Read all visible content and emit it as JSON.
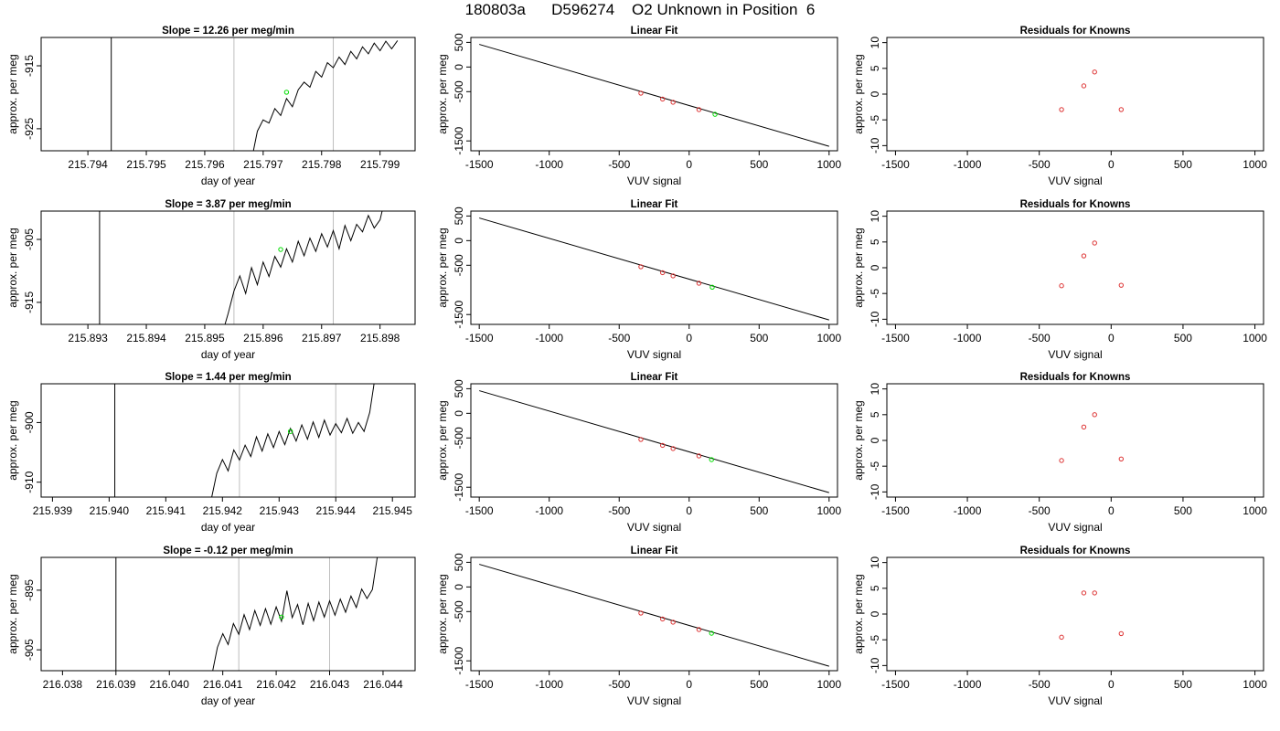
{
  "figure": {
    "title": "180803a      D596274    O2 Unknown in Position  6"
  },
  "chart_data": [
    {
      "type": "line",
      "panel": "raw-row-1",
      "title": "Slope =  12.26  per meg/min",
      "xlabel": "day of year",
      "ylabel": "approx. per meg",
      "xlim": [
        215.7932,
        215.7996
      ],
      "ylim": [
        -928.5,
        -910.5
      ],
      "xticks": [
        "215.794",
        "215.795",
        "215.796",
        "215.797",
        "215.798",
        "215.799"
      ],
      "yticks": [
        "-915",
        "-925"
      ],
      "vline_dark": 215.7944,
      "vlines_gray": [
        215.7965,
        215.7982
      ],
      "mean_point": {
        "x": 215.7974,
        "y": -919.2
      },
      "series": [
        {
          "points": [
            [
              215.7968,
              -930
            ],
            [
              215.7969,
              -925.4
            ],
            [
              215.797,
              -923.6
            ],
            [
              215.7971,
              -924.1
            ],
            [
              215.7972,
              -921.8
            ],
            [
              215.7973,
              -922.9
            ],
            [
              215.7974,
              -920.2
            ],
            [
              215.7975,
              -921.5
            ],
            [
              215.7976,
              -918.8
            ],
            [
              215.7977,
              -917.6
            ],
            [
              215.7978,
              -918.4
            ],
            [
              215.7979,
              -915.9
            ],
            [
              215.798,
              -916.8
            ],
            [
              215.7981,
              -914.5
            ],
            [
              215.7982,
              -915.3
            ],
            [
              215.7983,
              -913.6
            ],
            [
              215.7984,
              -914.8
            ],
            [
              215.7985,
              -912.7
            ],
            [
              215.7986,
              -913.9
            ],
            [
              215.7987,
              -912.0
            ],
            [
              215.7988,
              -913.1
            ],
            [
              215.7989,
              -911.4
            ],
            [
              215.799,
              -912.6
            ],
            [
              215.7991,
              -911.1
            ],
            [
              215.7992,
              -912.3
            ],
            [
              215.7993,
              -911.0
            ]
          ]
        }
      ]
    },
    {
      "type": "scatter",
      "panel": "fit-row-1",
      "title": "Linear Fit",
      "xlabel": "VUV signal",
      "ylabel": "approx. per meg",
      "xlim": [
        -1560,
        1060
      ],
      "ylim": [
        -1700,
        600
      ],
      "xticks": [
        "-1500",
        "-1000",
        "-500",
        "0",
        "500",
        "1000"
      ],
      "yticks": [
        "500",
        "0",
        "-500",
        "-1500"
      ],
      "fit_line": {
        "x": [
          -1500,
          1000
        ],
        "y": [
          460,
          -1610
        ]
      },
      "known_points": {
        "x": [
          -345,
          -190,
          -115,
          70
        ],
        "y": [
          -530,
          -650,
          -715,
          -865
        ]
      },
      "unknown_point": {
        "x": 185,
        "y": -960
      }
    },
    {
      "type": "scatter",
      "panel": "resid-row-1",
      "title": "Residuals for Knowns",
      "xlabel": "VUV signal",
      "ylabel": "approx. per meg",
      "xlim": [
        -1560,
        1060
      ],
      "ylim": [
        -11,
        11
      ],
      "xticks": [
        "-1500",
        "-1000",
        "-500",
        "0",
        "500",
        "1000"
      ],
      "yticks": [
        "10",
        "5",
        "0",
        "-5",
        "-10"
      ],
      "points": {
        "x": [
          -345,
          -190,
          -115,
          70
        ],
        "y": [
          -3.0,
          1.6,
          4.3,
          -3.0
        ]
      }
    },
    {
      "type": "line",
      "panel": "raw-row-2",
      "title": "Slope =  3.87  per meg/min",
      "xlabel": "day of year",
      "ylabel": "approx. per meg",
      "xlim": [
        215.8922,
        215.8986
      ],
      "ylim": [
        -918.5,
        -900.5
      ],
      "xticks": [
        "215.893",
        "215.894",
        "215.895",
        "215.896",
        "215.897",
        "215.898"
      ],
      "yticks": [
        "-905",
        "-915"
      ],
      "vline_dark": 215.8932,
      "vlines_gray": [
        215.8955,
        215.8972
      ],
      "mean_point": {
        "x": 215.8963,
        "y": -906.6
      },
      "series": [
        {
          "points": [
            [
              215.8953,
              -920
            ],
            [
              215.8954,
              -916.8
            ],
            [
              215.8955,
              -913.2
            ],
            [
              215.8956,
              -910.8
            ],
            [
              215.8957,
              -913.6
            ],
            [
              215.8958,
              -909.5
            ],
            [
              215.8959,
              -912.2
            ],
            [
              215.896,
              -908.6
            ],
            [
              215.8961,
              -910.9
            ],
            [
              215.8962,
              -907.7
            ],
            [
              215.8963,
              -909.4
            ],
            [
              215.8964,
              -906.5
            ],
            [
              215.8965,
              -908.6
            ],
            [
              215.8966,
              -905.3
            ],
            [
              215.8967,
              -907.6
            ],
            [
              215.8968,
              -904.8
            ],
            [
              215.8969,
              -906.9
            ],
            [
              215.897,
              -904.1
            ],
            [
              215.8971,
              -906.2
            ],
            [
              215.8972,
              -903.6
            ],
            [
              215.8973,
              -906.5
            ],
            [
              215.8974,
              -902.8
            ],
            [
              215.8975,
              -905.2
            ],
            [
              215.8976,
              -902.6
            ],
            [
              215.8977,
              -903.8
            ],
            [
              215.8978,
              -901.2
            ],
            [
              215.8979,
              -903.2
            ],
            [
              215.898,
              -901.9
            ],
            [
              215.8981,
              -898
            ]
          ]
        }
      ]
    },
    {
      "type": "scatter",
      "panel": "fit-row-2",
      "title": "Linear Fit",
      "xlabel": "VUV signal",
      "ylabel": "approx. per meg",
      "xlim": [
        -1560,
        1060
      ],
      "ylim": [
        -1700,
        600
      ],
      "xticks": [
        "-1500",
        "-1000",
        "-500",
        "0",
        "500",
        "1000"
      ],
      "yticks": [
        "500",
        "0",
        "-500",
        "-1500"
      ],
      "fit_line": {
        "x": [
          -1500,
          1000
        ],
        "y": [
          460,
          -1610
        ]
      },
      "known_points": {
        "x": [
          -345,
          -190,
          -115,
          70
        ],
        "y": [
          -530,
          -650,
          -715,
          -865
        ]
      },
      "unknown_point": {
        "x": 165,
        "y": -945
      }
    },
    {
      "type": "scatter",
      "panel": "resid-row-2",
      "title": "Residuals for Knowns",
      "xlabel": "VUV signal",
      "ylabel": "approx. per meg",
      "xlim": [
        -1560,
        1060
      ],
      "ylim": [
        -11,
        11
      ],
      "xticks": [
        "-1500",
        "-1000",
        "-500",
        "0",
        "500",
        "1000"
      ],
      "yticks": [
        "10",
        "5",
        "0",
        "-5",
        "-10"
      ],
      "points": {
        "x": [
          -345,
          -190,
          -115,
          70
        ],
        "y": [
          -3.5,
          2.3,
          4.8,
          -3.4
        ]
      }
    },
    {
      "type": "line",
      "panel": "raw-row-3",
      "title": "Slope =  1.44  per meg/min",
      "xlabel": "day of year",
      "ylabel": "approx. per meg",
      "xlim": [
        215.9388,
        215.9454
      ],
      "ylim": [
        -912.5,
        -893.5
      ],
      "xticks": [
        "215.939",
        "215.940",
        "215.941",
        "215.942",
        "215.943",
        "215.944",
        "215.945"
      ],
      "yticks": [
        "-900",
        "-910"
      ],
      "vline_dark": 215.9401,
      "vlines_gray": [
        215.9423,
        215.944
      ],
      "mean_point": {
        "x": 215.9432,
        "y": -901.5
      },
      "series": [
        {
          "points": [
            [
              215.9418,
              -913
            ],
            [
              215.9419,
              -908.5
            ],
            [
              215.942,
              -906.2
            ],
            [
              215.9421,
              -908.1
            ],
            [
              215.9422,
              -904.6
            ],
            [
              215.9423,
              -906.3
            ],
            [
              215.9424,
              -903.8
            ],
            [
              215.9425,
              -905.7
            ],
            [
              215.9426,
              -902.4
            ],
            [
              215.9427,
              -904.8
            ],
            [
              215.9428,
              -901.9
            ],
            [
              215.9429,
              -904.2
            ],
            [
              215.943,
              -901.5
            ],
            [
              215.9431,
              -903.7
            ],
            [
              215.9432,
              -901.0
            ],
            [
              215.9433,
              -903.1
            ],
            [
              215.9434,
              -900.4
            ],
            [
              215.9435,
              -902.8
            ],
            [
              215.9436,
              -899.9
            ],
            [
              215.9437,
              -902.5
            ],
            [
              215.9438,
              -899.6
            ],
            [
              215.9439,
              -902.1
            ],
            [
              215.944,
              -900.2
            ],
            [
              215.9441,
              -901.7
            ],
            [
              215.9442,
              -899.3
            ],
            [
              215.9443,
              -901.8
            ],
            [
              215.9444,
              -900.0
            ],
            [
              215.9445,
              -901.5
            ],
            [
              215.9446,
              -898.3
            ],
            [
              215.9447,
              -892
            ]
          ]
        }
      ]
    },
    {
      "type": "scatter",
      "panel": "fit-row-3",
      "title": "Linear Fit",
      "xlabel": "VUV signal",
      "ylabel": "approx. per meg",
      "xlim": [
        -1560,
        1060
      ],
      "ylim": [
        -1700,
        600
      ],
      "xticks": [
        "-1500",
        "-1000",
        "-500",
        "0",
        "500",
        "1000"
      ],
      "yticks": [
        "500",
        "0",
        "-500",
        "-1500"
      ],
      "fit_line": {
        "x": [
          -1500,
          1000
        ],
        "y": [
          460,
          -1610
        ]
      },
      "known_points": {
        "x": [
          -345,
          -190,
          -115,
          70
        ],
        "y": [
          -530,
          -650,
          -715,
          -865
        ]
      },
      "unknown_point": {
        "x": 160,
        "y": -940
      }
    },
    {
      "type": "scatter",
      "panel": "resid-row-3",
      "title": "Residuals for Knowns",
      "xlabel": "VUV signal",
      "ylabel": "approx. per meg",
      "xlim": [
        -1560,
        1060
      ],
      "ylim": [
        -11,
        11
      ],
      "xticks": [
        "-1500",
        "-1000",
        "-500",
        "0",
        "500",
        "1000"
      ],
      "yticks": [
        "10",
        "5",
        "0",
        "-5",
        "-10"
      ],
      "points": {
        "x": [
          -345,
          -190,
          -115,
          70
        ],
        "y": [
          -3.9,
          2.6,
          5.0,
          -3.6
        ]
      }
    },
    {
      "type": "line",
      "panel": "raw-row-4",
      "title": "Slope =  -0.12  per meg/min",
      "xlabel": "day of year",
      "ylabel": "approx. per meg",
      "xlim": [
        216.0376,
        216.0446
      ],
      "ylim": [
        -908.5,
        -889.5
      ],
      "xticks": [
        "216.038",
        "216.039",
        "216.040",
        "216.041",
        "216.042",
        "216.043",
        "216.044"
      ],
      "yticks": [
        "-895",
        "-905"
      ],
      "vline_dark": 216.039,
      "vlines_gray": [
        216.0413,
        216.043
      ],
      "mean_point": {
        "x": 216.0421,
        "y": -899.5
      },
      "series": [
        {
          "points": [
            [
              216.0408,
              -909
            ],
            [
              216.0409,
              -904.6
            ],
            [
              216.041,
              -902.3
            ],
            [
              216.0411,
              -904.1
            ],
            [
              216.0412,
              -900.6
            ],
            [
              216.0413,
              -902.4
            ],
            [
              216.0414,
              -899.1
            ],
            [
              216.0415,
              -901.6
            ],
            [
              216.0416,
              -898.4
            ],
            [
              216.0417,
              -900.9
            ],
            [
              216.0418,
              -898.1
            ],
            [
              216.0419,
              -900.7
            ],
            [
              216.042,
              -897.8
            ],
            [
              216.0421,
              -900.2
            ],
            [
              216.0422,
              -895.1
            ],
            [
              216.0423,
              -899.6
            ],
            [
              216.0424,
              -897.4
            ],
            [
              216.0425,
              -900.8
            ],
            [
              216.0426,
              -897.2
            ],
            [
              216.0427,
              -900.1
            ],
            [
              216.0428,
              -897.0
            ],
            [
              216.0429,
              -899.5
            ],
            [
              216.043,
              -896.8
            ],
            [
              216.0431,
              -899.2
            ],
            [
              216.0432,
              -896.5
            ],
            [
              216.0433,
              -898.7
            ],
            [
              216.0434,
              -896.0
            ],
            [
              216.0435,
              -897.9
            ],
            [
              216.0436,
              -894.8
            ],
            [
              216.0437,
              -896.4
            ],
            [
              216.0438,
              -894.9
            ],
            [
              216.0439,
              -889
            ]
          ]
        }
      ]
    },
    {
      "type": "scatter",
      "panel": "fit-row-4",
      "title": "Linear Fit",
      "xlabel": "VUV signal",
      "ylabel": "approx. per meg",
      "xlim": [
        -1560,
        1060
      ],
      "ylim": [
        -1700,
        600
      ],
      "xticks": [
        "-1500",
        "-1000",
        "-500",
        "0",
        "500",
        "1000"
      ],
      "yticks": [
        "500",
        "0",
        "-500",
        "-1500"
      ],
      "fit_line": {
        "x": [
          -1500,
          1000
        ],
        "y": [
          460,
          -1610
        ]
      },
      "known_points": {
        "x": [
          -345,
          -190,
          -115,
          70
        ],
        "y": [
          -530,
          -650,
          -715,
          -865
        ]
      },
      "unknown_point": {
        "x": 160,
        "y": -940
      }
    },
    {
      "type": "scatter",
      "panel": "resid-row-4",
      "title": "Residuals for Knowns",
      "xlabel": "VUV signal",
      "ylabel": "approx. per meg",
      "xlim": [
        -1560,
        1060
      ],
      "ylim": [
        -11,
        11
      ],
      "xticks": [
        "-1500",
        "-1000",
        "-500",
        "0",
        "500",
        "1000"
      ],
      "yticks": [
        "10",
        "5",
        "0",
        "-5",
        "-10"
      ],
      "points": {
        "x": [
          -345,
          -190,
          -115,
          70
        ],
        "y": [
          -4.5,
          4.1,
          4.1,
          -3.8
        ]
      }
    }
  ],
  "colors": {
    "axis": "#000000",
    "series_line": "#000000",
    "gray_line": "#bebebe",
    "known_point": "#dd3333",
    "unknown_point": "#00dd00"
  }
}
